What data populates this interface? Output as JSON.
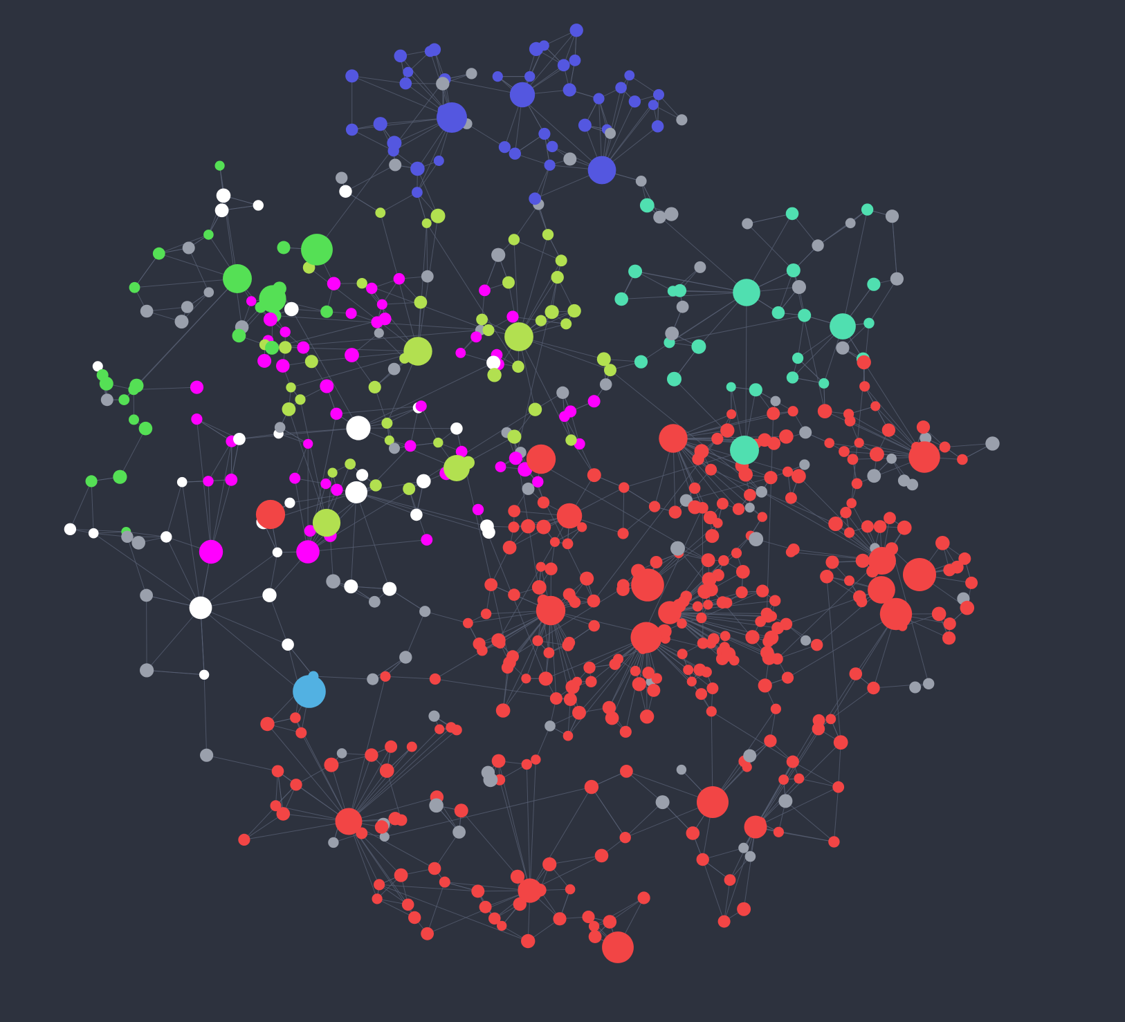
{
  "graph": {
    "background": "#2d323e",
    "edge_color": "#5a6275",
    "group_colors": {
      "blue": "#5457e0",
      "green": "#55e055",
      "lime": "#b2e050",
      "magenta": "#ff00ff",
      "teal": "#50dfb0",
      "red": "#f24545",
      "white": "#ffffff",
      "gray": "#9aa0ac",
      "sky": "#52b1e2"
    },
    "hubs": {
      "blue": 3,
      "green": 3,
      "lime": 4,
      "magenta": 2,
      "teal": 3,
      "red": 18,
      "white": 3,
      "gray": 0,
      "sky": 1
    },
    "node_counts": {
      "blue": 42,
      "green": 24,
      "lime": 44,
      "magenta": 50,
      "teal": 26,
      "red": 300,
      "white": 32,
      "gray": 88,
      "sky": 2
    }
  }
}
